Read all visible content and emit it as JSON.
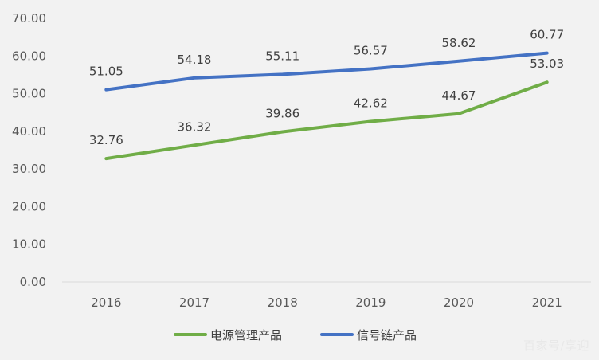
{
  "chart_data": {
    "type": "line",
    "categories": [
      "2016",
      "2017",
      "2018",
      "2019",
      "2020",
      "2021"
    ],
    "series": [
      {
        "name": "电源管理产品",
        "values": [
          32.76,
          36.32,
          39.86,
          42.62,
          44.67,
          53.03
        ],
        "color": "#70ad47"
      },
      {
        "name": "信号链产品",
        "values": [
          51.05,
          54.18,
          55.11,
          56.57,
          58.62,
          60.77
        ],
        "color": "#4472c4"
      }
    ],
    "yticks": [
      "0.00",
      "10.00",
      "20.00",
      "30.00",
      "40.00",
      "50.00",
      "60.00",
      "70.00"
    ],
    "ylim": [
      0,
      70
    ],
    "legend_position": "bottom",
    "grid": false
  },
  "watermark": "百家号/享迎"
}
